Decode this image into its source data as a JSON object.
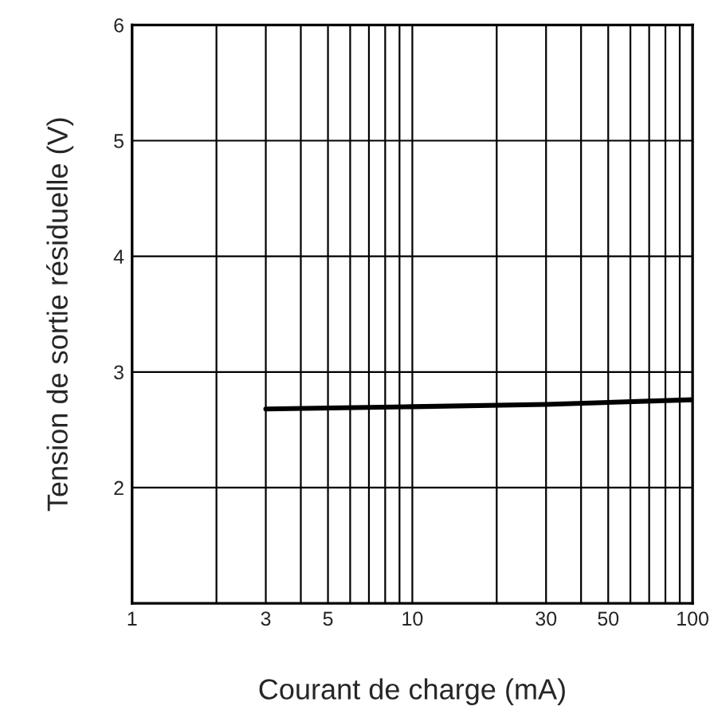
{
  "chart_data": {
    "type": "line",
    "xlabel": "Courant de charge (mA)",
    "ylabel": "Tension de sortie résiduelle (V)",
    "log": "x",
    "x": [
      3,
      10,
      30,
      100
    ],
    "series": [
      {
        "color": "#000000",
        "values": [
          2.68,
          2.7,
          2.72,
          2.76
        ]
      }
    ],
    "xlim": [
      1,
      100
    ],
    "ylim": [
      1,
      6
    ],
    "xticks": [
      1,
      {
        "value": 2,
        "label": null
      },
      3,
      {
        "value": 4,
        "label": null
      },
      5,
      {
        "value": 6,
        "label": null
      },
      {
        "value": 7,
        "label": null
      },
      {
        "value": 8,
        "label": null
      },
      {
        "value": 9,
        "label": null
      },
      10,
      {
        "value": 20,
        "label": null
      },
      30,
      {
        "value": 40,
        "label": null
      },
      50,
      {
        "value": 60,
        "label": null
      },
      {
        "value": 70,
        "label": null
      },
      {
        "value": 80,
        "label": null
      },
      {
        "value": 90,
        "label": null
      },
      100
    ],
    "yticks": [
      2,
      3,
      4,
      5,
      6
    ],
    "grid": true,
    "marker": "none",
    "line_style": "solid"
  }
}
